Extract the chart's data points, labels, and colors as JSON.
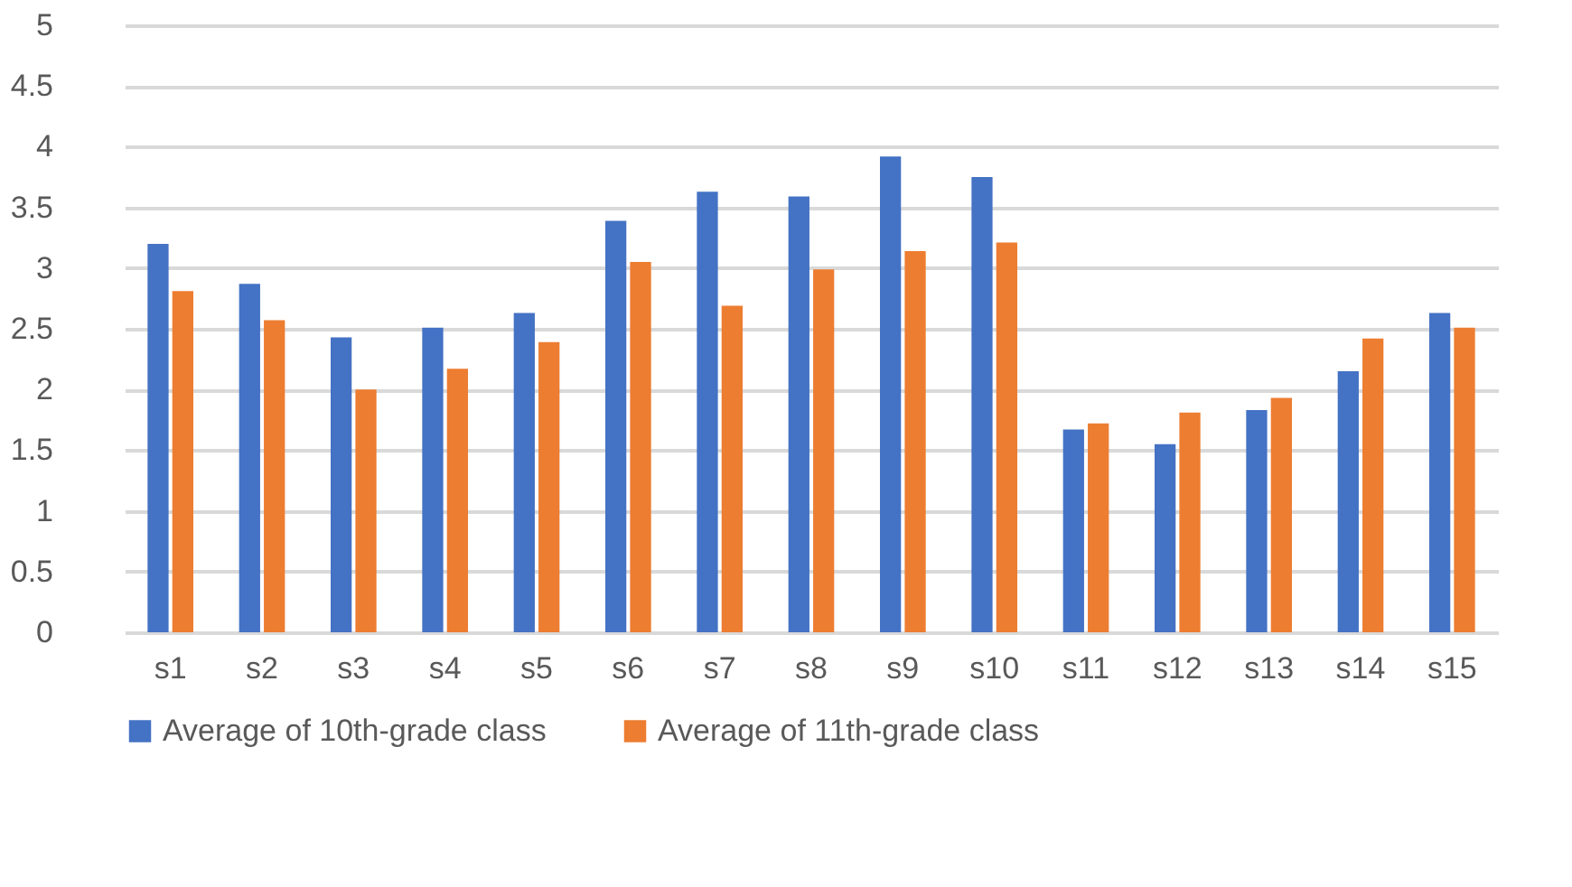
{
  "chart_data": {
    "type": "bar",
    "categories": [
      "s1",
      "s2",
      "s3",
      "s4",
      "s5",
      "s6",
      "s7",
      "s8",
      "s9",
      "s10",
      "s11",
      "s12",
      "s13",
      "s14",
      "s15"
    ],
    "series": [
      {
        "name": "Average of 10th-grade class",
        "color": "#4472c4",
        "values": [
          3.2,
          2.87,
          2.43,
          2.51,
          2.63,
          3.39,
          3.63,
          3.59,
          3.92,
          3.75,
          1.67,
          1.55,
          1.83,
          2.15,
          2.63
        ]
      },
      {
        "name": "Average of 11th-grade class",
        "color": "#ed7d31",
        "values": [
          2.81,
          2.57,
          2.0,
          2.17,
          2.39,
          3.05,
          2.69,
          2.99,
          3.14,
          3.21,
          1.72,
          1.81,
          1.93,
          2.42,
          2.51
        ]
      }
    ],
    "ylim": [
      0,
      5
    ],
    "yticks": [
      0,
      0.5,
      1,
      1.5,
      2,
      2.5,
      3,
      3.5,
      4,
      4.5,
      5
    ],
    "grid": "y",
    "legend": "bottom"
  }
}
